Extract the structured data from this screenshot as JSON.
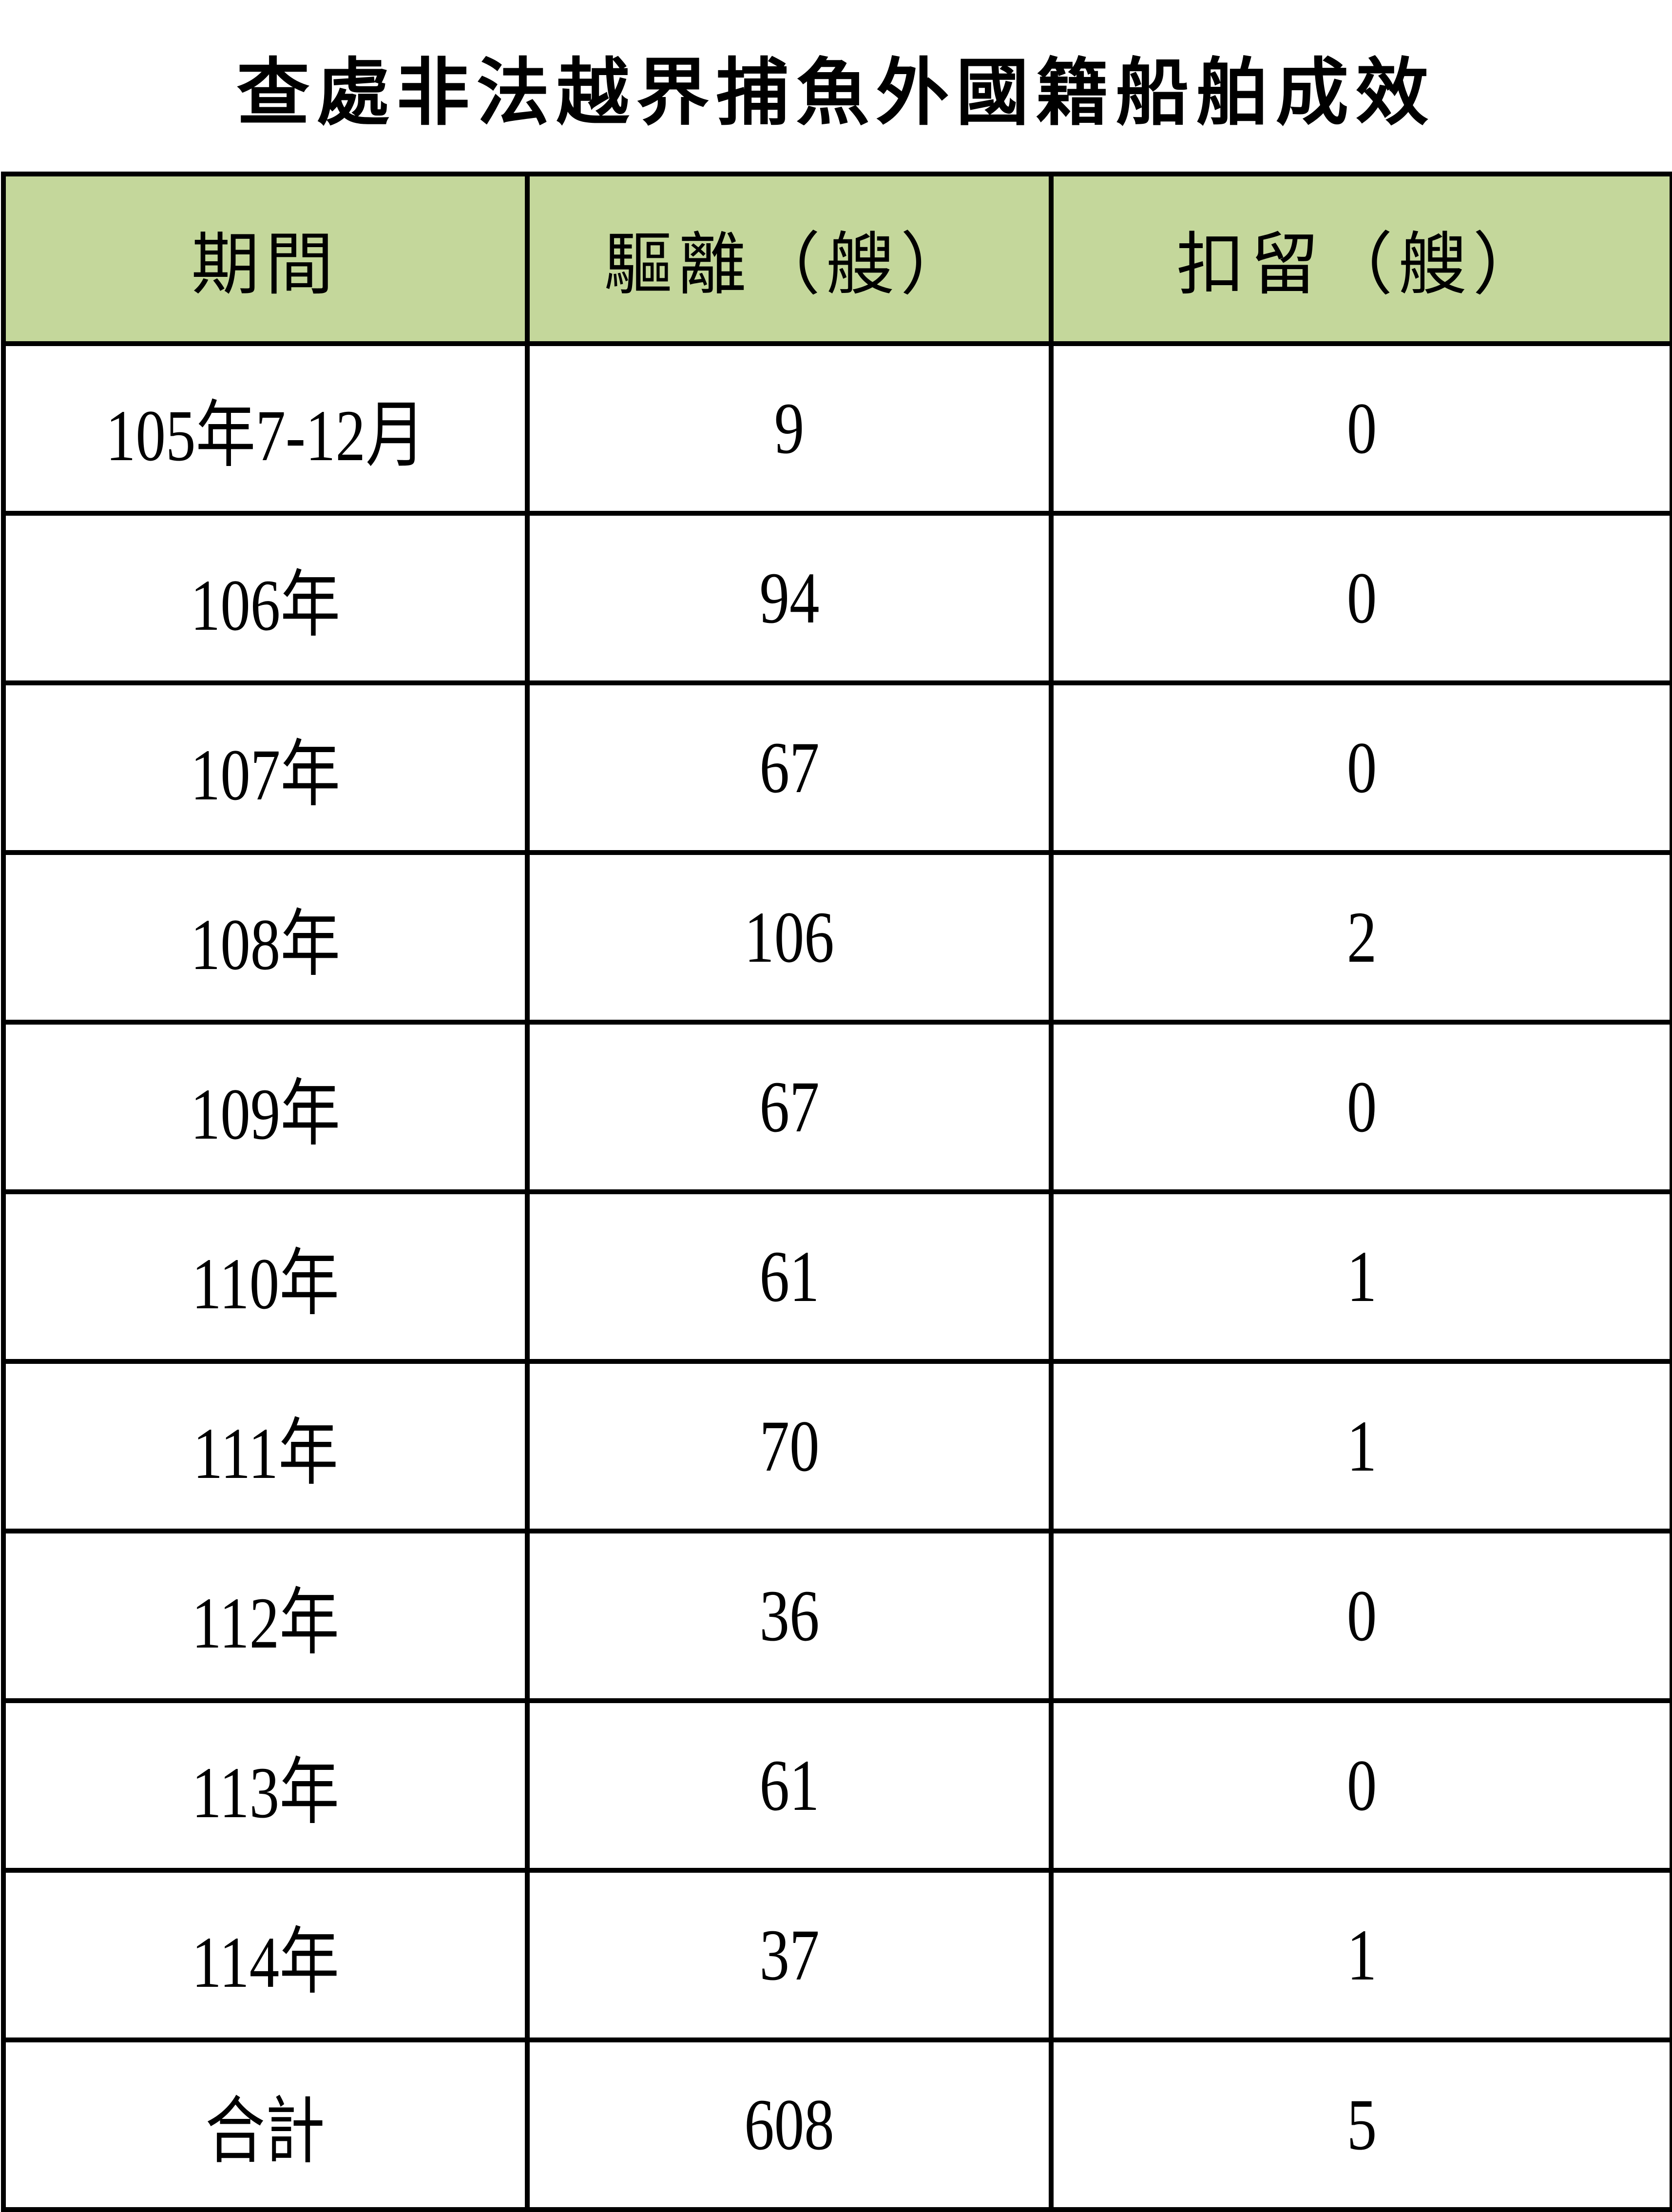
{
  "title": "查處非法越界捕魚外國籍船舶成效",
  "header_color": "#c4d79b",
  "columns": [
    "期間",
    "驅離（艘）",
    "扣留（艘）"
  ],
  "rows": [
    [
      "105年7-12月",
      "9",
      "0"
    ],
    [
      "106年",
      "94",
      "0"
    ],
    [
      "107年",
      "67",
      "0"
    ],
    [
      "108年",
      "106",
      "2"
    ],
    [
      "109年",
      "67",
      "0"
    ],
    [
      "110年",
      "61",
      "1"
    ],
    [
      "111年",
      "70",
      "1"
    ],
    [
      "112年",
      "36",
      "0"
    ],
    [
      "113年",
      "61",
      "0"
    ],
    [
      "114年",
      "37",
      "1"
    ],
    [
      "合計",
      "608",
      "5"
    ]
  ]
}
